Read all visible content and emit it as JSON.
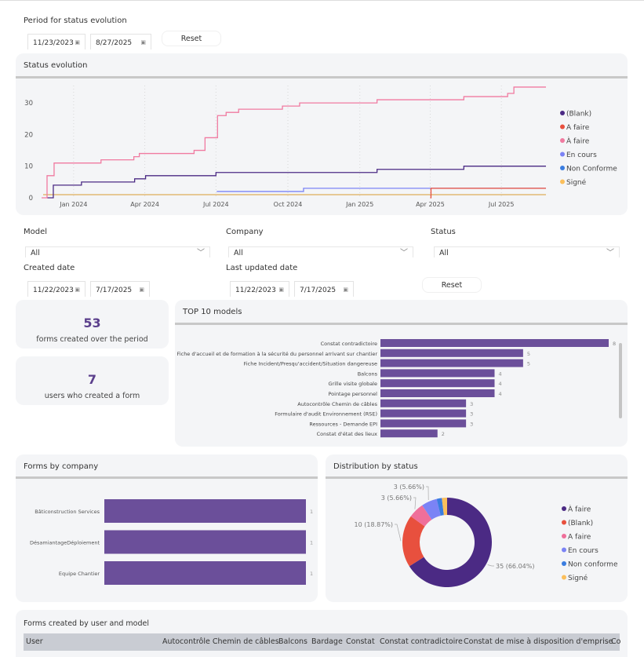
{
  "period": {
    "label": "Period for status evolution",
    "start": "11/23/2023",
    "end": "8/27/2025",
    "reset": "Reset"
  },
  "status_evolution": {
    "title": "Status evolution"
  },
  "filters": {
    "model": {
      "label": "Model",
      "value": "All"
    },
    "company": {
      "label": "Company",
      "value": "All"
    },
    "status": {
      "label": "Status",
      "value": "All"
    },
    "created": {
      "label": "Created date",
      "start": "11/22/2023",
      "end": "7/17/2025"
    },
    "updated": {
      "label": "Last updated date",
      "start": "11/22/2023",
      "end": "7/17/2025"
    },
    "reset": "Reset"
  },
  "kpis": [
    {
      "value": "53",
      "label": "forms created over the period"
    },
    {
      "value": "7",
      "label": "users who created a form"
    }
  ],
  "top_models": {
    "title": "TOP 10 models"
  },
  "forms_by_company": {
    "title": "Forms by company"
  },
  "distribution": {
    "title": "Distribution by status"
  },
  "table": {
    "title": "Forms created by user and model",
    "columns": [
      "User",
      "Autocontrôle Chemin de câbles",
      "Balcons",
      "Bardage",
      "Constat",
      "Constat contradictoire",
      "Constat de mise à disposition d'emprise",
      "Co"
    ]
  },
  "icons": {
    "calendar": "calendar-icon",
    "chevron": "chevron-down-icon"
  },
  "chart_data": [
    {
      "type": "line",
      "title": "Status evolution",
      "step": true,
      "xlim": [
        "2023-11-23",
        "2025-08-27"
      ],
      "ylim": [
        0,
        35
      ],
      "xticks": [
        "Jan 2024",
        "Apr 2024",
        "Jul 2024",
        "Oct 2024",
        "Jan 2025",
        "Apr 2025",
        "Jul 2025"
      ],
      "yticks": [
        0,
        10,
        20,
        30
      ],
      "grid": "vertical-dotted",
      "legend": "right",
      "series": [
        {
          "name": "(Blank)",
          "color": "#4b2a84",
          "points": [
            [
              "2023-11-28",
              0
            ],
            [
              "2023-12-06",
              4
            ],
            [
              "2024-01-11",
              5
            ],
            [
              "2024-03-19",
              6
            ],
            [
              "2024-04-02",
              7
            ],
            [
              "2024-07-01",
              8
            ],
            [
              "2025-01-23",
              9
            ],
            [
              "2025-05-14",
              10
            ],
            [
              "2025-08-27",
              10
            ]
          ]
        },
        {
          "name": "A faire",
          "color": "#e8503e",
          "points": [
            [
              "2025-04-01",
              0
            ],
            [
              "2025-04-02",
              3
            ],
            [
              "2025-08-27",
              3
            ]
          ]
        },
        {
          "name": "À faire",
          "color": "#f07aa0",
          "points": [
            [
              "2023-11-21",
              0
            ],
            [
              "2023-11-28",
              7
            ],
            [
              "2023-12-07",
              11
            ],
            [
              "2024-02-05",
              12
            ],
            [
              "2024-03-18",
              13
            ],
            [
              "2024-03-25",
              14
            ],
            [
              "2024-06-03",
              15
            ],
            [
              "2024-06-17",
              19
            ],
            [
              "2024-07-03",
              26
            ],
            [
              "2024-07-14",
              27
            ],
            [
              "2024-07-30",
              28
            ],
            [
              "2024-09-24",
              29
            ],
            [
              "2024-10-16",
              30
            ],
            [
              "2025-01-23",
              31
            ],
            [
              "2025-05-14",
              32
            ],
            [
              "2025-07-09",
              33
            ],
            [
              "2025-07-17",
              35
            ],
            [
              "2025-08-27",
              35
            ]
          ]
        },
        {
          "name": "En cours",
          "color": "#7b83f5",
          "points": [
            [
              "2024-07-02",
              2
            ],
            [
              "2024-10-21",
              3
            ],
            [
              "2025-08-27",
              3
            ]
          ]
        },
        {
          "name": "Non Conforme",
          "color": "#3a7de0",
          "points": [
            [
              "2023-11-23",
              1
            ],
            [
              "2025-08-27",
              1
            ]
          ]
        },
        {
          "name": "Signé",
          "color": "#fbbf5c",
          "points": [
            [
              "2023-11-23",
              1
            ],
            [
              "2025-08-27",
              1
            ]
          ]
        }
      ]
    },
    {
      "type": "bar",
      "orientation": "horizontal",
      "title": "TOP 10 models",
      "color": "#6b4f9a",
      "xlim": [
        0,
        8
      ],
      "categories": [
        "Constat contradictoire",
        "Fiche d'accueil et de formation à la sécurité du personnel arrivant sur chantier",
        "Fiche Incident/Presqu'accident/Situation dangereuse",
        "Balcons",
        "Grille visite globale",
        "Pointage personnel",
        "Autocontrôle Chemin de câbles",
        "Formulaire d'audit Environnement (RSE)",
        "Ressources - Demande EPI",
        "Constat d'état des lieux"
      ],
      "values": [
        8,
        5,
        5,
        4,
        4,
        4,
        3,
        3,
        3,
        2
      ]
    },
    {
      "type": "bar",
      "orientation": "horizontal",
      "title": "Forms by company",
      "color": "#6b4f9a",
      "xlim": [
        0,
        1
      ],
      "categories": [
        "Bâticonstruction Services",
        "DésamiantageDéploiement",
        "Equipe Chantier"
      ],
      "values": [
        1,
        1,
        1
      ]
    },
    {
      "type": "pie",
      "donut": true,
      "title": "Distribution by status",
      "legend": "right",
      "slices": [
        {
          "name": "À faire",
          "value": 35,
          "label": "35 (66.04%)",
          "color": "#4b2a84"
        },
        {
          "name": "(Blank)",
          "value": 10,
          "label": "10 (18.87%)",
          "color": "#e8503e"
        },
        {
          "name": "A faire",
          "value": 3,
          "label": "3 (5.66%)",
          "color": "#ef6f9a"
        },
        {
          "name": "En cours",
          "value": 3,
          "label": "3 (5.66%)",
          "color": "#7b83f5"
        },
        {
          "name": "Non conforme",
          "value": 1,
          "label": "",
          "color": "#3a7de0"
        },
        {
          "name": "Signé",
          "value": 1,
          "label": "",
          "color": "#fbbf5c"
        }
      ]
    }
  ]
}
